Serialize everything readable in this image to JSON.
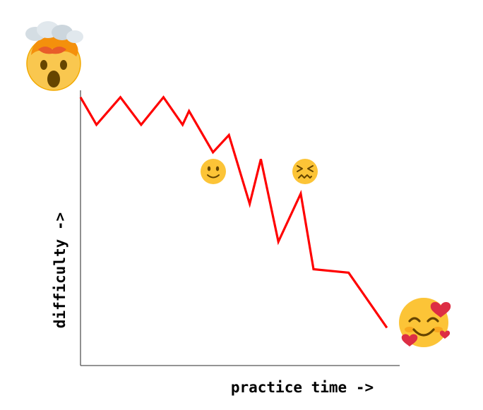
{
  "chart_data": {
    "type": "line",
    "title": "",
    "xlabel": "practice time ->",
    "ylabel": "difficulty ->",
    "xlim": [
      0,
      20
    ],
    "ylim": [
      0,
      40
    ],
    "grid": false,
    "series": [
      {
        "color": "#ff0000",
        "x": [
          0,
          1,
          2.5,
          3.8,
          5.2,
          6.4,
          6.8,
          8.3,
          9.3,
          10.6,
          11.3,
          12.4,
          13.8,
          14.6,
          16.8,
          19.2
        ],
        "y": [
          39,
          35,
          39,
          35,
          39,
          35,
          37,
          31,
          33.5,
          23.5,
          30,
          18,
          25,
          14,
          13.5,
          5.5
        ]
      }
    ],
    "annotations": [
      {
        "icon": "exploding-head-icon",
        "at": "start"
      },
      {
        "icon": "slightly-smiling-face-icon"
      },
      {
        "icon": "confounded-face-icon"
      },
      {
        "icon": "smiling-face-with-hearts-icon",
        "at": "end"
      }
    ]
  }
}
